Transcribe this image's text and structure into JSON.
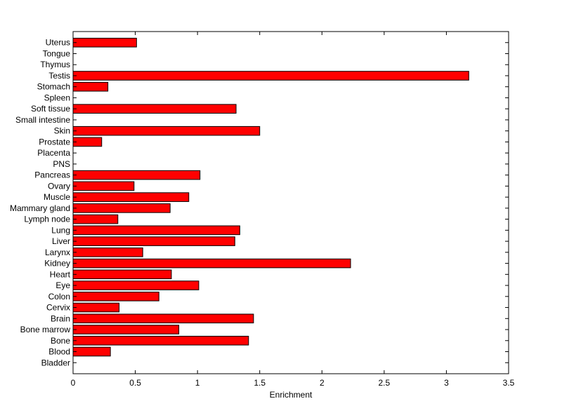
{
  "chart_data": {
    "type": "bar",
    "orientation": "horizontal",
    "categories": [
      "Uterus",
      "Tongue",
      "Thymus",
      "Testis",
      "Stomach",
      "Spleen",
      "Soft tissue",
      "Small intestine",
      "Skin",
      "Prostate",
      "Placenta",
      "PNS",
      "Pancreas",
      "Ovary",
      "Muscle",
      "Mammary gland",
      "Lymph node",
      "Lung",
      "Liver",
      "Larynx",
      "Kidney",
      "Heart",
      "Eye",
      "Colon",
      "Cervix",
      "Brain",
      "Bone marrow",
      "Bone",
      "Blood",
      "Bladder"
    ],
    "values": [
      0.51,
      0,
      0,
      3.18,
      0.28,
      0,
      1.31,
      0,
      1.5,
      0.23,
      0,
      0,
      1.02,
      0.49,
      0.93,
      0.78,
      0.36,
      1.34,
      1.3,
      0.56,
      2.23,
      0.79,
      1.01,
      0.69,
      0.37,
      1.45,
      0.85,
      1.41,
      0.3,
      0
    ],
    "xlabel": "Enrichment",
    "ylabel": "",
    "title": "",
    "xlim": [
      0,
      3.5
    ],
    "xticks": [
      "0",
      "0.5",
      "1",
      "1.5",
      "2",
      "2.5",
      "3",
      "3.5"
    ],
    "bar_color": "#ff0000",
    "grid": false
  }
}
